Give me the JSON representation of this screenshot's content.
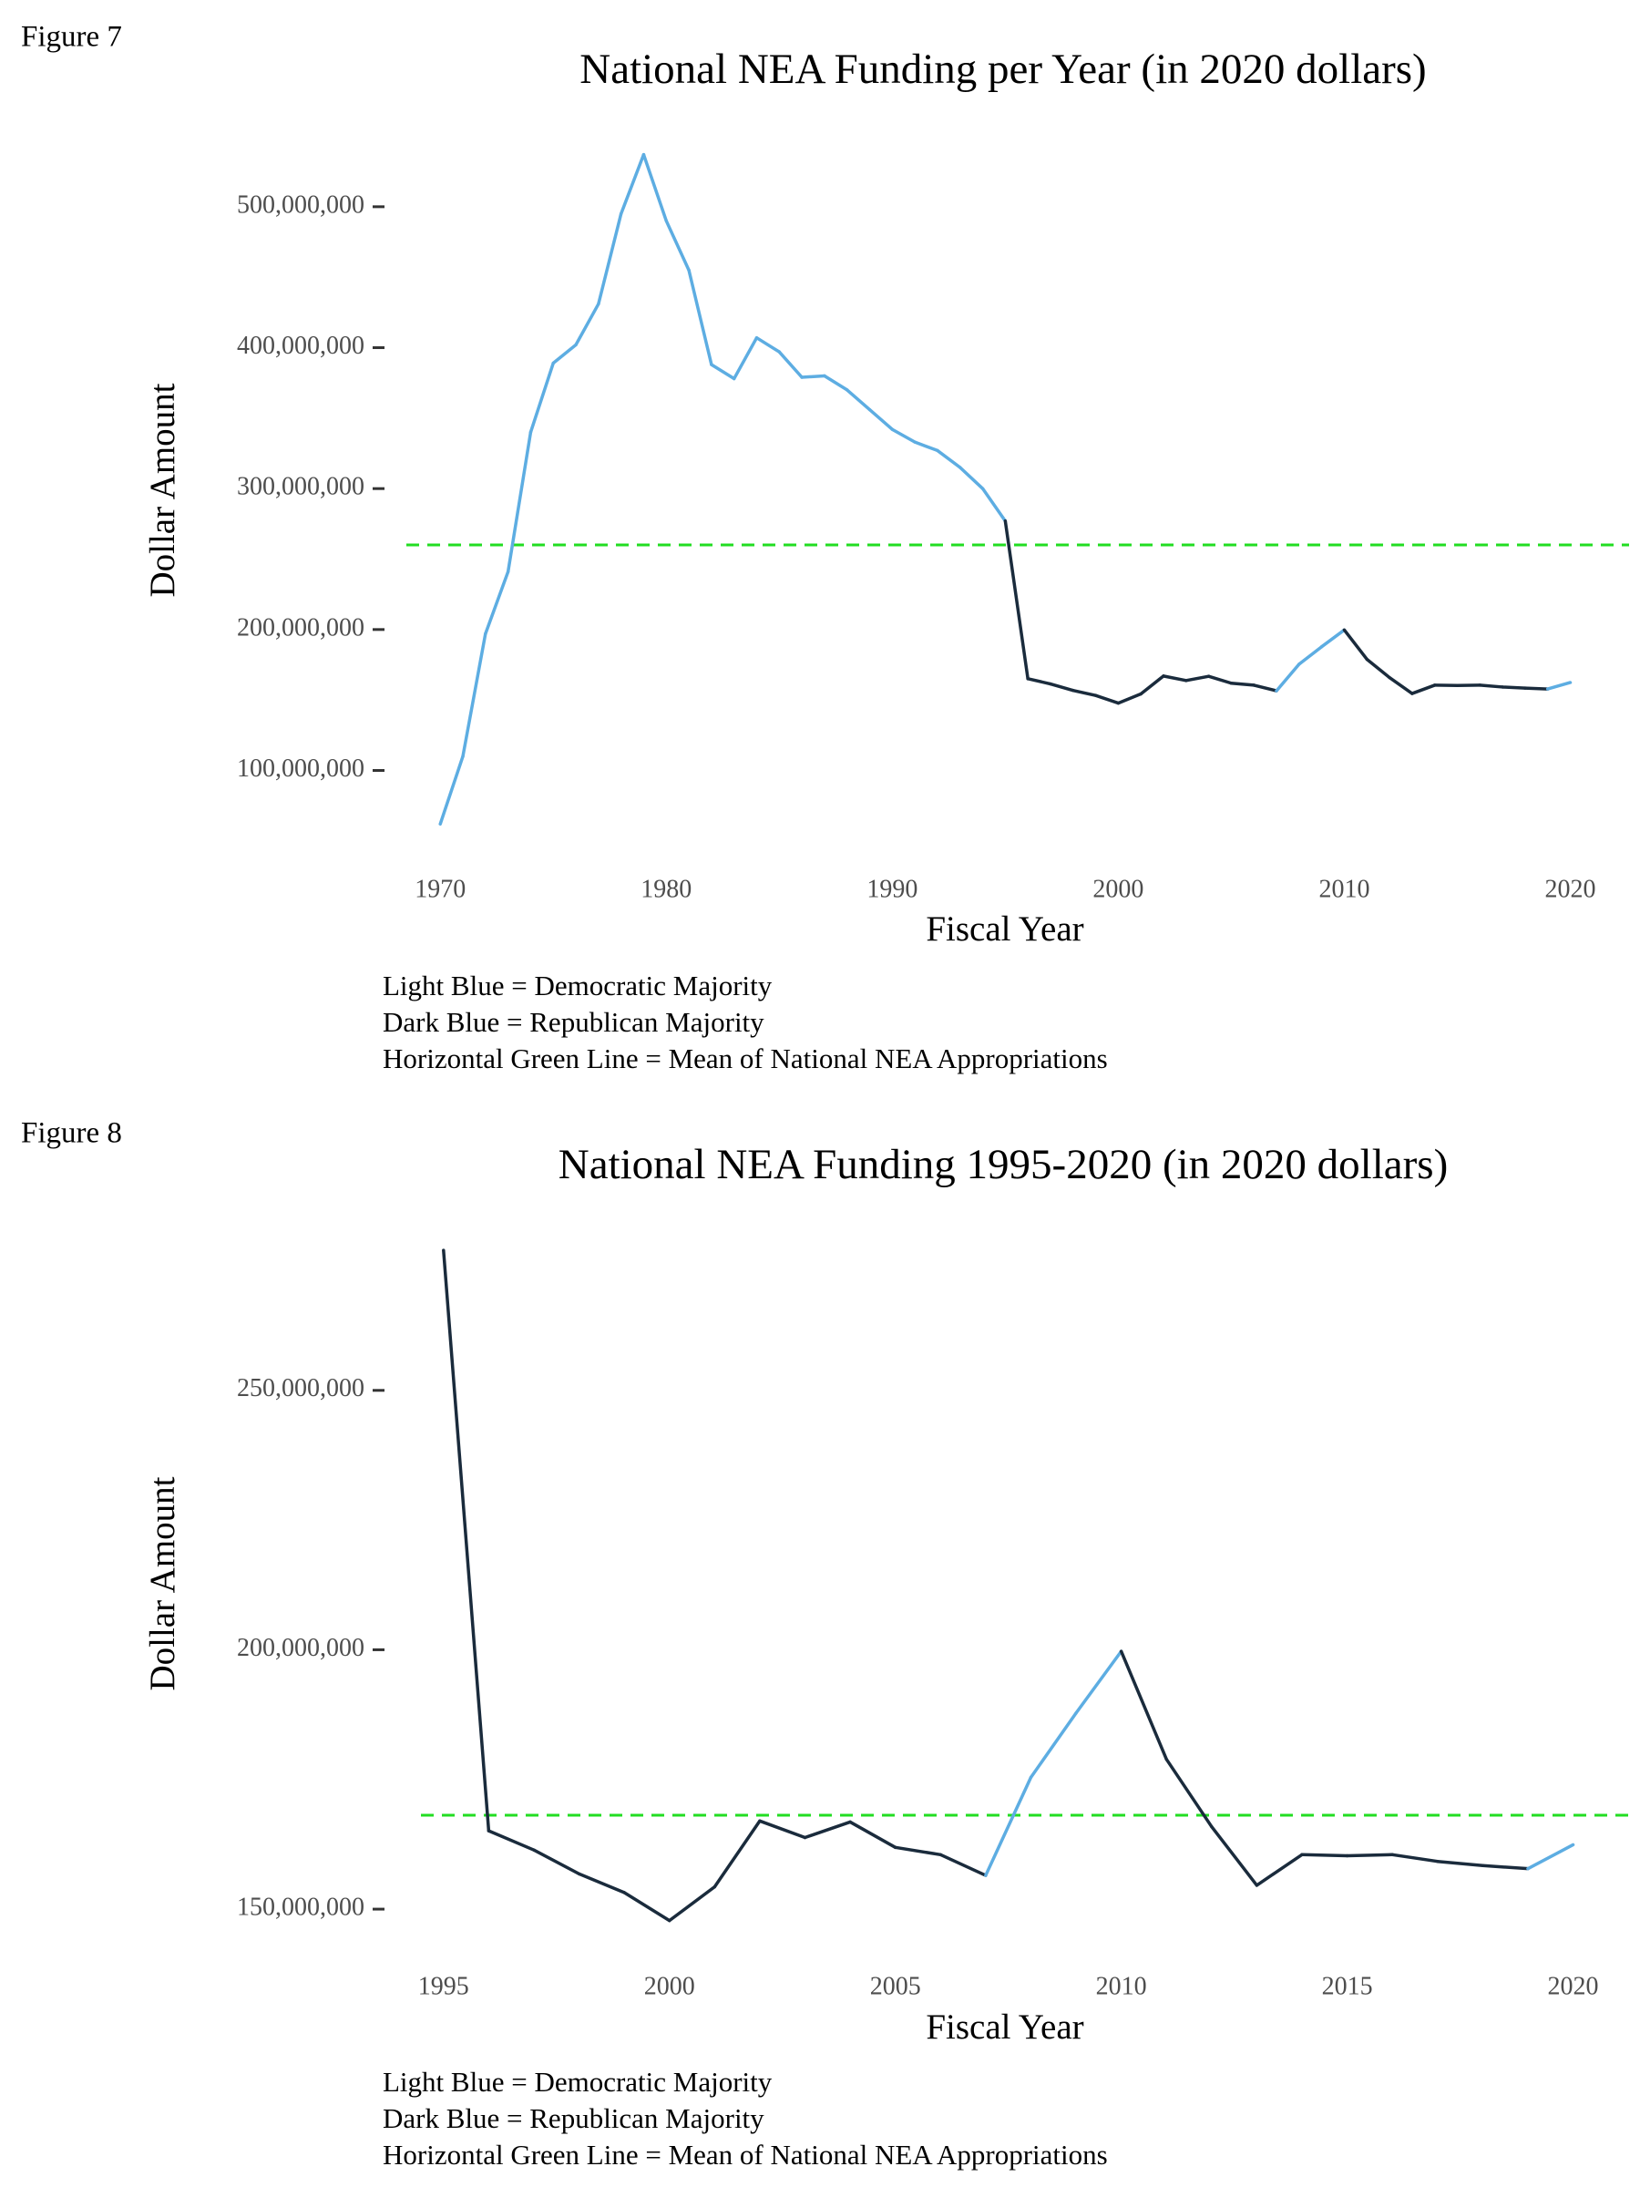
{
  "chart_data": [
    {
      "type": "line",
      "label": "Figure 7",
      "title": "National NEA Funding per Year (in 2020 dollars)",
      "x_label": "Fiscal Year",
      "y_label": "Dollar Amount",
      "x": [
        1970,
        1971,
        1972,
        1973,
        1974,
        1975,
        1976,
        1977,
        1978,
        1979,
        1980,
        1981,
        1982,
        1983,
        1984,
        1985,
        1986,
        1987,
        1988,
        1989,
        1990,
        1991,
        1992,
        1993,
        1994,
        1995,
        1996,
        1997,
        1998,
        1999,
        2000,
        2001,
        2002,
        2003,
        2004,
        2005,
        2006,
        2007,
        2008,
        2009,
        2010,
        2011,
        2012,
        2013,
        2014,
        2015,
        2016,
        2017,
        2018,
        2019,
        2020
      ],
      "values": [
        62000000,
        110000000,
        197000000,
        241000000,
        340000000,
        389000000,
        402000000,
        431000000,
        495000000,
        537000000,
        490000000,
        455000000,
        388000000,
        378000000,
        407000000,
        397000000,
        379000000,
        380000000,
        370000000,
        356000000,
        342000000,
        333000000,
        327000000,
        315000000,
        300000000,
        277000000,
        165100000,
        161400000,
        156800000,
        153200000,
        147800000,
        154300000,
        167000000,
        163800000,
        166800000,
        161900000,
        160500000,
        156500000,
        175400000,
        187800000,
        199700000,
        178900000,
        165900000,
        154600000,
        160500000,
        160300000,
        160500000,
        159200000,
        158400000,
        157800000,
        162400000
      ],
      "colors": [
        "#5dade2",
        "#5dade2",
        "#5dade2",
        "#5dade2",
        "#5dade2",
        "#5dade2",
        "#5dade2",
        "#5dade2",
        "#5dade2",
        "#5dade2",
        "#5dade2",
        "#5dade2",
        "#5dade2",
        "#5dade2",
        "#5dade2",
        "#5dade2",
        "#5dade2",
        "#5dade2",
        "#5dade2",
        "#5dade2",
        "#5dade2",
        "#5dade2",
        "#5dade2",
        "#5dade2",
        "#5dade2",
        "#1a2b3c",
        "#1a2b3c",
        "#1a2b3c",
        "#1a2b3c",
        "#1a2b3c",
        "#1a2b3c",
        "#1a2b3c",
        "#1a2b3c",
        "#1a2b3c",
        "#1a2b3c",
        "#1a2b3c",
        "#1a2b3c",
        "#5dade2",
        "#5dade2",
        "#5dade2",
        "#1a2b3c",
        "#1a2b3c",
        "#1a2b3c",
        "#1a2b3c",
        "#1a2b3c",
        "#1a2b3c",
        "#1a2b3c",
        "#1a2b3c",
        "#1a2b3c",
        "#5dade2",
        "#5dade2"
      ],
      "mean": 260000000,
      "mean_color": "#22dd22",
      "xlim": [
        1968.5,
        2022.6
      ],
      "ylim": [
        57000000,
        540000000
      ],
      "xticks": [
        1970,
        1980,
        1990,
        2000,
        2010,
        2020
      ],
      "yticks": [
        {
          "value": 100000000,
          "label": "100,000,000"
        },
        {
          "value": 200000000,
          "label": "200,000,000"
        },
        {
          "value": 300000000,
          "label": "300,000,000"
        },
        {
          "value": 400000000,
          "label": "400,000,000"
        },
        {
          "value": 500000000,
          "label": "500,000,000"
        }
      ],
      "notes": [
        "Light Blue = Democratic Majority",
        "Dark Blue = Republican Majority",
        "Horizontal Green Line = Mean of National NEA Appropriations"
      ]
    },
    {
      "type": "line",
      "label": "Figure 8",
      "title": "National NEA Funding 1995-2020 (in 2020 dollars)",
      "x_label": "Fiscal Year",
      "y_label": "Dollar Amount",
      "x": [
        1995,
        1996,
        1997,
        1998,
        1999,
        2000,
        2001,
        2002,
        2003,
        2004,
        2005,
        2006,
        2007,
        2008,
        2009,
        2010,
        2011,
        2012,
        2013,
        2014,
        2015,
        2016,
        2017,
        2018,
        2019,
        2020
      ],
      "values": [
        277000000,
        165100000,
        161400000,
        156800000,
        153200000,
        147800000,
        154300000,
        167000000,
        163800000,
        166800000,
        161900000,
        160500000,
        156500000,
        175400000,
        187800000,
        199700000,
        178900000,
        165900000,
        154600000,
        160500000,
        160300000,
        160500000,
        159200000,
        158400000,
        157800000,
        162400000
      ],
      "colors": [
        "#1a2b3c",
        "#1a2b3c",
        "#1a2b3c",
        "#1a2b3c",
        "#1a2b3c",
        "#1a2b3c",
        "#1a2b3c",
        "#1a2b3c",
        "#1a2b3c",
        "#1a2b3c",
        "#1a2b3c",
        "#1a2b3c",
        "#5dade2",
        "#5dade2",
        "#5dade2",
        "#1a2b3c",
        "#1a2b3c",
        "#1a2b3c",
        "#1a2b3c",
        "#1a2b3c",
        "#1a2b3c",
        "#1a2b3c",
        "#1a2b3c",
        "#1a2b3c",
        "#5dade2",
        "#5dade2"
      ],
      "mean": 168100000,
      "mean_color": "#22dd22",
      "xlim": [
        1994.5,
        2021.3
      ],
      "ylim": [
        146500000,
        280000000
      ],
      "xticks": [
        1995,
        2000,
        2005,
        2010,
        2015,
        2020
      ],
      "yticks": [
        {
          "value": 150000000,
          "label": "150,000,000"
        },
        {
          "value": 200000000,
          "label": "200,000,000"
        },
        {
          "value": 250000000,
          "label": "250,000,000"
        }
      ],
      "notes": [
        "Light Blue = Democratic Majority",
        "Dark Blue = Republican Majority",
        "Horizontal Green Line = Mean of National NEA Appropriations"
      ]
    }
  ]
}
